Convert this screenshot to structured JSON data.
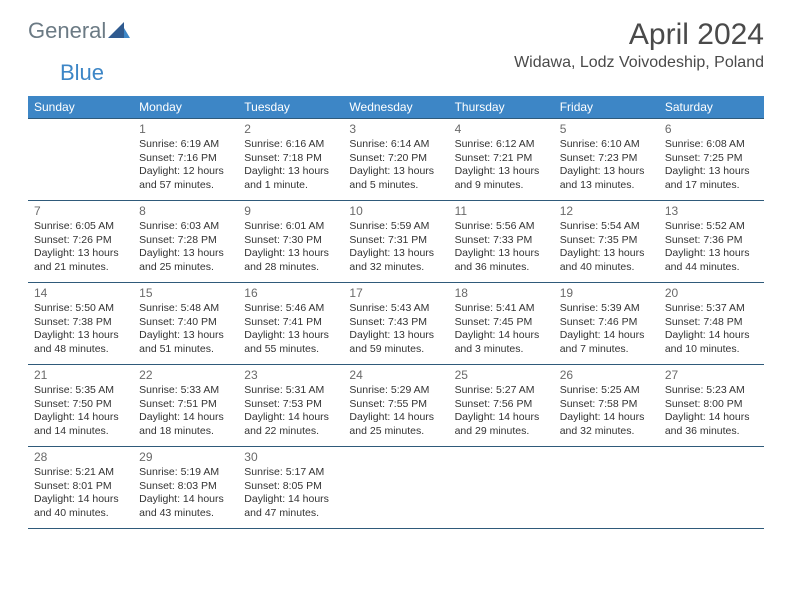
{
  "brand": {
    "part1": "General",
    "part2": "Blue"
  },
  "title": "April 2024",
  "location": "Widawa, Lodz Voivodeship, Poland",
  "colors": {
    "header_bg": "#3d86c6",
    "header_text": "#ffffff",
    "border": "#2f5a7a",
    "text": "#333333",
    "daynum": "#6a6a6a",
    "logo_gray": "#6b7a84",
    "logo_blue": "#3d86c6",
    "title_color": "#4a4a4a",
    "page_bg": "#ffffff"
  },
  "typography": {
    "month_title_fontsize": 30,
    "location_fontsize": 16,
    "weekday_fontsize": 12,
    "daynum_fontsize": 12,
    "cell_fontsize": 10.5
  },
  "weekdays": [
    "Sunday",
    "Monday",
    "Tuesday",
    "Wednesday",
    "Thursday",
    "Friday",
    "Saturday"
  ],
  "weeks": [
    [
      null,
      {
        "d": "1",
        "sr": "Sunrise: 6:19 AM",
        "ss": "Sunset: 7:16 PM",
        "dl1": "Daylight: 12 hours",
        "dl2": "and 57 minutes."
      },
      {
        "d": "2",
        "sr": "Sunrise: 6:16 AM",
        "ss": "Sunset: 7:18 PM",
        "dl1": "Daylight: 13 hours",
        "dl2": "and 1 minute."
      },
      {
        "d": "3",
        "sr": "Sunrise: 6:14 AM",
        "ss": "Sunset: 7:20 PM",
        "dl1": "Daylight: 13 hours",
        "dl2": "and 5 minutes."
      },
      {
        "d": "4",
        "sr": "Sunrise: 6:12 AM",
        "ss": "Sunset: 7:21 PM",
        "dl1": "Daylight: 13 hours",
        "dl2": "and 9 minutes."
      },
      {
        "d": "5",
        "sr": "Sunrise: 6:10 AM",
        "ss": "Sunset: 7:23 PM",
        "dl1": "Daylight: 13 hours",
        "dl2": "and 13 minutes."
      },
      {
        "d": "6",
        "sr": "Sunrise: 6:08 AM",
        "ss": "Sunset: 7:25 PM",
        "dl1": "Daylight: 13 hours",
        "dl2": "and 17 minutes."
      }
    ],
    [
      {
        "d": "7",
        "sr": "Sunrise: 6:05 AM",
        "ss": "Sunset: 7:26 PM",
        "dl1": "Daylight: 13 hours",
        "dl2": "and 21 minutes."
      },
      {
        "d": "8",
        "sr": "Sunrise: 6:03 AM",
        "ss": "Sunset: 7:28 PM",
        "dl1": "Daylight: 13 hours",
        "dl2": "and 25 minutes."
      },
      {
        "d": "9",
        "sr": "Sunrise: 6:01 AM",
        "ss": "Sunset: 7:30 PM",
        "dl1": "Daylight: 13 hours",
        "dl2": "and 28 minutes."
      },
      {
        "d": "10",
        "sr": "Sunrise: 5:59 AM",
        "ss": "Sunset: 7:31 PM",
        "dl1": "Daylight: 13 hours",
        "dl2": "and 32 minutes."
      },
      {
        "d": "11",
        "sr": "Sunrise: 5:56 AM",
        "ss": "Sunset: 7:33 PM",
        "dl1": "Daylight: 13 hours",
        "dl2": "and 36 minutes."
      },
      {
        "d": "12",
        "sr": "Sunrise: 5:54 AM",
        "ss": "Sunset: 7:35 PM",
        "dl1": "Daylight: 13 hours",
        "dl2": "and 40 minutes."
      },
      {
        "d": "13",
        "sr": "Sunrise: 5:52 AM",
        "ss": "Sunset: 7:36 PM",
        "dl1": "Daylight: 13 hours",
        "dl2": "and 44 minutes."
      }
    ],
    [
      {
        "d": "14",
        "sr": "Sunrise: 5:50 AM",
        "ss": "Sunset: 7:38 PM",
        "dl1": "Daylight: 13 hours",
        "dl2": "and 48 minutes."
      },
      {
        "d": "15",
        "sr": "Sunrise: 5:48 AM",
        "ss": "Sunset: 7:40 PM",
        "dl1": "Daylight: 13 hours",
        "dl2": "and 51 minutes."
      },
      {
        "d": "16",
        "sr": "Sunrise: 5:46 AM",
        "ss": "Sunset: 7:41 PM",
        "dl1": "Daylight: 13 hours",
        "dl2": "and 55 minutes."
      },
      {
        "d": "17",
        "sr": "Sunrise: 5:43 AM",
        "ss": "Sunset: 7:43 PM",
        "dl1": "Daylight: 13 hours",
        "dl2": "and 59 minutes."
      },
      {
        "d": "18",
        "sr": "Sunrise: 5:41 AM",
        "ss": "Sunset: 7:45 PM",
        "dl1": "Daylight: 14 hours",
        "dl2": "and 3 minutes."
      },
      {
        "d": "19",
        "sr": "Sunrise: 5:39 AM",
        "ss": "Sunset: 7:46 PM",
        "dl1": "Daylight: 14 hours",
        "dl2": "and 7 minutes."
      },
      {
        "d": "20",
        "sr": "Sunrise: 5:37 AM",
        "ss": "Sunset: 7:48 PM",
        "dl1": "Daylight: 14 hours",
        "dl2": "and 10 minutes."
      }
    ],
    [
      {
        "d": "21",
        "sr": "Sunrise: 5:35 AM",
        "ss": "Sunset: 7:50 PM",
        "dl1": "Daylight: 14 hours",
        "dl2": "and 14 minutes."
      },
      {
        "d": "22",
        "sr": "Sunrise: 5:33 AM",
        "ss": "Sunset: 7:51 PM",
        "dl1": "Daylight: 14 hours",
        "dl2": "and 18 minutes."
      },
      {
        "d": "23",
        "sr": "Sunrise: 5:31 AM",
        "ss": "Sunset: 7:53 PM",
        "dl1": "Daylight: 14 hours",
        "dl2": "and 22 minutes."
      },
      {
        "d": "24",
        "sr": "Sunrise: 5:29 AM",
        "ss": "Sunset: 7:55 PM",
        "dl1": "Daylight: 14 hours",
        "dl2": "and 25 minutes."
      },
      {
        "d": "25",
        "sr": "Sunrise: 5:27 AM",
        "ss": "Sunset: 7:56 PM",
        "dl1": "Daylight: 14 hours",
        "dl2": "and 29 minutes."
      },
      {
        "d": "26",
        "sr": "Sunrise: 5:25 AM",
        "ss": "Sunset: 7:58 PM",
        "dl1": "Daylight: 14 hours",
        "dl2": "and 32 minutes."
      },
      {
        "d": "27",
        "sr": "Sunrise: 5:23 AM",
        "ss": "Sunset: 8:00 PM",
        "dl1": "Daylight: 14 hours",
        "dl2": "and 36 minutes."
      }
    ],
    [
      {
        "d": "28",
        "sr": "Sunrise: 5:21 AM",
        "ss": "Sunset: 8:01 PM",
        "dl1": "Daylight: 14 hours",
        "dl2": "and 40 minutes."
      },
      {
        "d": "29",
        "sr": "Sunrise: 5:19 AM",
        "ss": "Sunset: 8:03 PM",
        "dl1": "Daylight: 14 hours",
        "dl2": "and 43 minutes."
      },
      {
        "d": "30",
        "sr": "Sunrise: 5:17 AM",
        "ss": "Sunset: 8:05 PM",
        "dl1": "Daylight: 14 hours",
        "dl2": "and 47 minutes."
      },
      null,
      null,
      null,
      null
    ]
  ]
}
